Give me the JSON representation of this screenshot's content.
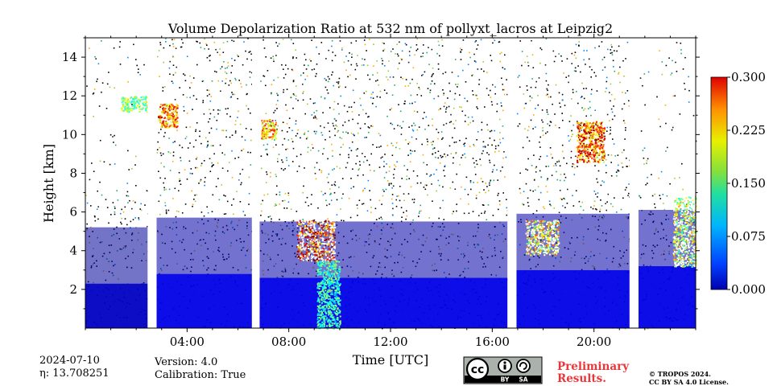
{
  "chart_data": {
    "type": "heatmap",
    "title": "Volume Depolarization Ratio at 532 nm of pollyxt_lacros at Leipzig2",
    "xlabel": "Time [UTC]",
    "ylabel": "Height [km]",
    "x_unit": "hours UTC",
    "xlim": [
      0,
      24
    ],
    "ylim": [
      0,
      15
    ],
    "x_ticks": [
      {
        "value": 4,
        "label": "04:00"
      },
      {
        "value": 8,
        "label": "08:00"
      },
      {
        "value": 12,
        "label": "12:00"
      },
      {
        "value": 16,
        "label": "16:00"
      },
      {
        "value": 20,
        "label": "20:00"
      }
    ],
    "y_ticks": [
      {
        "value": 2,
        "label": "2"
      },
      {
        "value": 4,
        "label": "4"
      },
      {
        "value": 6,
        "label": "6"
      },
      {
        "value": 8,
        "label": "8"
      },
      {
        "value": 10,
        "label": "10"
      },
      {
        "value": 12,
        "label": "12"
      },
      {
        "value": 14,
        "label": "14"
      }
    ],
    "colorbar": {
      "range": [
        0.0,
        0.3
      ],
      "colormap": "jet",
      "ticks": [
        {
          "value": 0.0,
          "label": "0.000"
        },
        {
          "value": 0.075,
          "label": "0.075"
        },
        {
          "value": 0.15,
          "label": "0.150"
        },
        {
          "value": 0.225,
          "label": "0.225"
        },
        {
          "value": 0.3,
          "label": "0.300"
        }
      ]
    },
    "data_gaps_hours": [
      [
        2.45,
        2.8
      ],
      [
        6.55,
        6.85
      ],
      [
        16.6,
        16.95
      ],
      [
        21.4,
        21.75
      ]
    ],
    "features": [
      {
        "kind": "boundary_layer",
        "t0": 0.0,
        "t1": 2.45,
        "h0": 0.0,
        "h1": 2.3,
        "value": 0.02
      },
      {
        "kind": "boundary_layer",
        "t0": 2.8,
        "t1": 6.55,
        "h0": 0.0,
        "h1": 2.8,
        "value": 0.03
      },
      {
        "kind": "boundary_layer",
        "t0": 6.85,
        "t1": 16.6,
        "h0": 0.0,
        "h1": 2.6,
        "value": 0.03
      },
      {
        "kind": "boundary_layer",
        "t0": 16.95,
        "t1": 21.4,
        "h0": 0.0,
        "h1": 3.0,
        "value": 0.03
      },
      {
        "kind": "boundary_layer",
        "t0": 21.75,
        "t1": 24.0,
        "h0": 0.0,
        "h1": 3.2,
        "value": 0.03
      },
      {
        "kind": "cirrus",
        "t0": 1.4,
        "t1": 2.4,
        "h0": 11.2,
        "h1": 12.0,
        "value": 0.18
      },
      {
        "kind": "cirrus",
        "t0": 2.85,
        "t1": 3.6,
        "h0": 10.4,
        "h1": 11.6,
        "value": 0.26
      },
      {
        "kind": "cirrus",
        "t0": 6.9,
        "t1": 7.5,
        "h0": 9.8,
        "h1": 10.8,
        "value": 0.25
      },
      {
        "kind": "cloud",
        "t0": 8.3,
        "t1": 9.8,
        "h0": 3.5,
        "h1": 5.6,
        "value": 0.3
      },
      {
        "kind": "precip",
        "t0": 9.1,
        "t1": 10.0,
        "h0": 0.0,
        "h1": 3.5,
        "value": 0.15
      },
      {
        "kind": "cloud",
        "t0": 17.3,
        "t1": 18.6,
        "h0": 3.8,
        "h1": 5.6,
        "value": 0.22
      },
      {
        "kind": "cirrus",
        "t0": 19.3,
        "t1": 20.4,
        "h0": 8.6,
        "h1": 10.7,
        "value": 0.27
      },
      {
        "kind": "cloud",
        "t0": 23.1,
        "t1": 24.0,
        "h0": 3.2,
        "h1": 6.8,
        "value": 0.2
      }
    ]
  },
  "footer": {
    "date": "2024-07-10",
    "eta": "η: 13.708251",
    "version": "Version: 4.0",
    "calibration": "Calibration: True",
    "preliminary_line1": "Preliminary",
    "preliminary_line2": "Results.",
    "copyright_line1": "© TROPOS 2024.",
    "copyright_line2": "CC BY SA 4.0 License.",
    "cc_label": "cc",
    "by_label": "BY",
    "sa_label": "SA"
  }
}
